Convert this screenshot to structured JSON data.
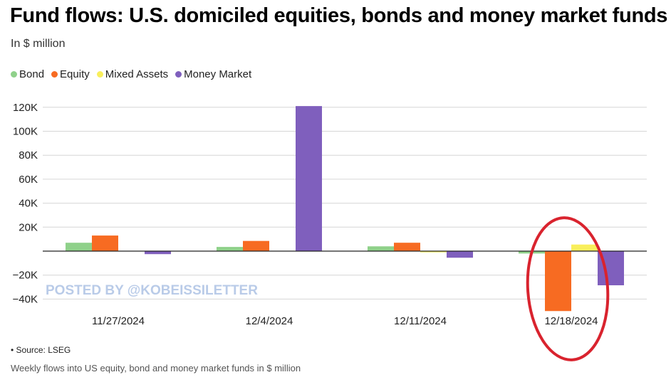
{
  "header": {
    "title": "Fund flows: U.S. domiciled equities, bonds and money market funds",
    "subtitle": "In $ million"
  },
  "footer": {
    "source": "• Source: LSEG",
    "note": "Weekly flows into US equity, bond and money market funds in $ million"
  },
  "watermark": "POSTED BY @KOBEISSILETTER",
  "colors": {
    "bond": "#8fd18a",
    "equity": "#f76b22",
    "mixed": "#f9ef5c",
    "money": "#7f5fbd",
    "annotation": "#d9232e",
    "watermark": "#b9cbe8"
  },
  "chart_data": {
    "type": "bar",
    "categories": [
      "11/27/2024",
      "12/4/2024",
      "12/11/2024",
      "12/18/2024"
    ],
    "series": [
      {
        "name": "Bond",
        "values": [
          7000,
          3500,
          4000,
          -2000
        ]
      },
      {
        "name": "Equity",
        "values": [
          13000,
          8500,
          7000,
          -50000
        ]
      },
      {
        "name": "Mixed Assets",
        "values": [
          0,
          0,
          -1000,
          5500
        ]
      },
      {
        "name": "Money Market",
        "values": [
          -2500,
          121000,
          -5500,
          -28500
        ]
      }
    ],
    "yticks": [
      -40000,
      -20000,
      20000,
      40000,
      60000,
      80000,
      100000,
      120000
    ],
    "ytick_labels": [
      "−40K",
      "−20K",
      "20K",
      "40K",
      "60K",
      "80K",
      "100K",
      "120K"
    ],
    "ylim": [
      -50000,
      120000
    ],
    "grid": true,
    "legend_position": "top-left",
    "annotation": "red ellipse circling 12/18/2024"
  }
}
